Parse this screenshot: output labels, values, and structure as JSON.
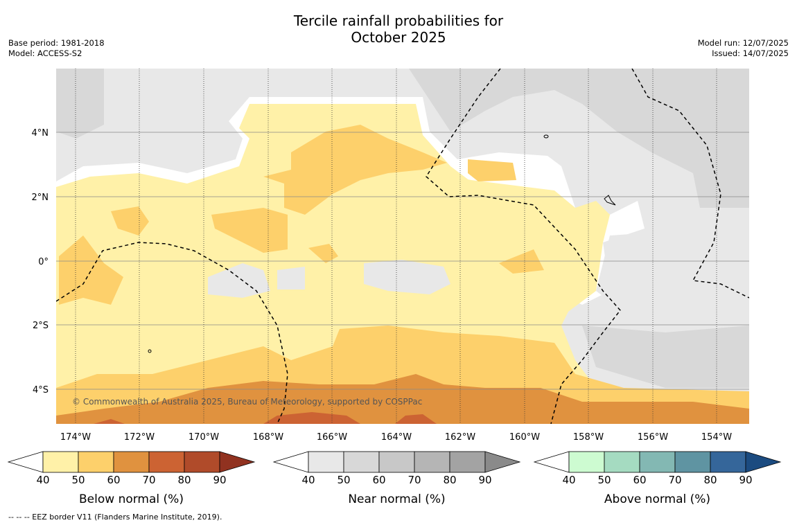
{
  "title_line1": "Tercile rainfall probabilities for",
  "title_line2": "October 2025",
  "base_period": "Base period: 1981-2018",
  "model": "Model: ACCESS-S2",
  "model_run": "Model run: 12/07/2025",
  "issued": "Issued: 14/07/2025",
  "copyright": "© Commonwealth of Australia 2025, Bureau of Meteorology, supported by COSPPac",
  "footnote": "--  --  -- EEZ border V11 (Flanders Marine Institute, 2019).",
  "lon_labels": [
    "174°W",
    "172°W",
    "170°W",
    "168°W",
    "166°W",
    "164°W",
    "162°W",
    "160°W",
    "158°W",
    "156°W",
    "154°W"
  ],
  "lat_labels": [
    "4°N",
    "2°N",
    "0°",
    "2°S",
    "4°S"
  ],
  "colorbars": [
    {
      "title": "Below normal (%)",
      "ticks": [
        "40",
        "50",
        "60",
        "70",
        "80",
        "90"
      ],
      "colors": [
        "#fff1a8",
        "#fdd06b",
        "#e0923f",
        "#cc6333",
        "#b04b2a",
        "#913220"
      ]
    },
    {
      "title": "Near normal (%)",
      "ticks": [
        "40",
        "50",
        "60",
        "70",
        "80",
        "90"
      ],
      "colors": [
        "#e8e8e8",
        "#d8d8d8",
        "#c8c8c8",
        "#b5b5b5",
        "#a3a3a3",
        "#8a8a8a"
      ]
    },
    {
      "title": "Above normal (%)",
      "ticks": [
        "40",
        "50",
        "60",
        "70",
        "80",
        "90"
      ],
      "colors": [
        "#cdfbd1",
        "#a5dbc1",
        "#83b8b3",
        "#5f94a2",
        "#35669a",
        "#1b4b80"
      ]
    }
  ]
}
